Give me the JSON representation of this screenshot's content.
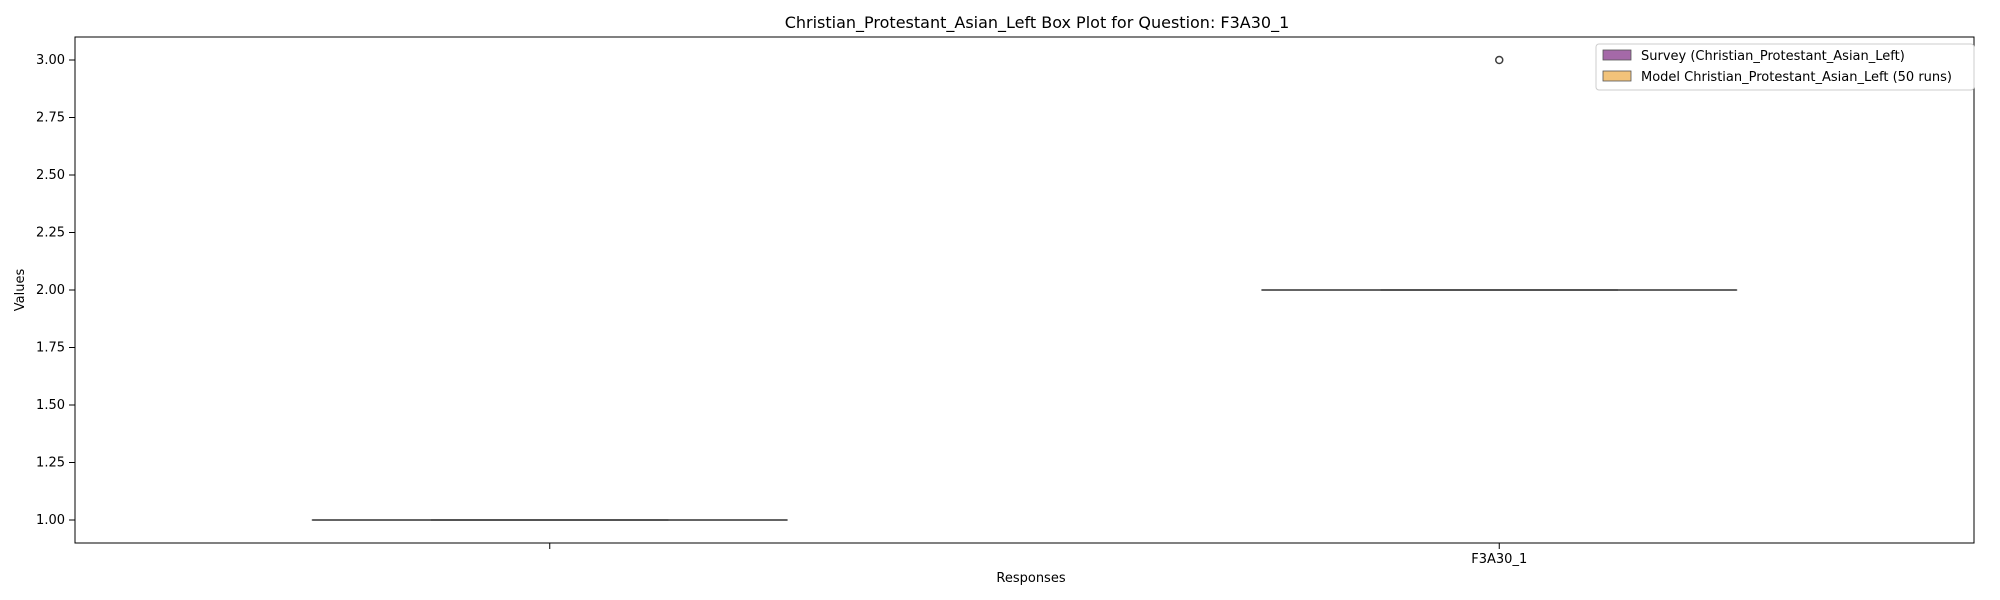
{
  "chart_data": {
    "type": "box",
    "title": "Christian_Protestant_Asian_Left Box Plot for Question: F3A30_1",
    "xlabel": "Responses",
    "ylabel": "Values",
    "ylim": [
      0.9,
      3.1
    ],
    "yticks": [
      1.0,
      1.25,
      1.5,
      1.75,
      2.0,
      2.25,
      2.5,
      2.75,
      3.0
    ],
    "ytick_labels": [
      "1.00",
      "1.25",
      "1.50",
      "1.75",
      "2.00",
      "2.25",
      "2.50",
      "2.75",
      "3.00"
    ],
    "categories": [
      "",
      "F3A30_1"
    ],
    "grid": false,
    "legend_position": "top-right",
    "legend": [
      {
        "label": "Survey (Christian_Protestant_Asian_Left)",
        "color": "#a569a8"
      },
      {
        "label": "Model Christian_Protestant_Asian_Left (50 runs)",
        "color": "#f2c37a"
      }
    ],
    "boxes": [
      {
        "category_index": 0,
        "q1": 1.0,
        "median": 1.0,
        "q3": 1.0,
        "whisker_low": 1.0,
        "whisker_high": 1.0,
        "outliers": []
      },
      {
        "category_index": 1,
        "q1": 2.0,
        "median": 2.0,
        "q3": 2.0,
        "whisker_low": 2.0,
        "whisker_high": 2.0,
        "outliers": [
          3.0
        ]
      }
    ]
  }
}
